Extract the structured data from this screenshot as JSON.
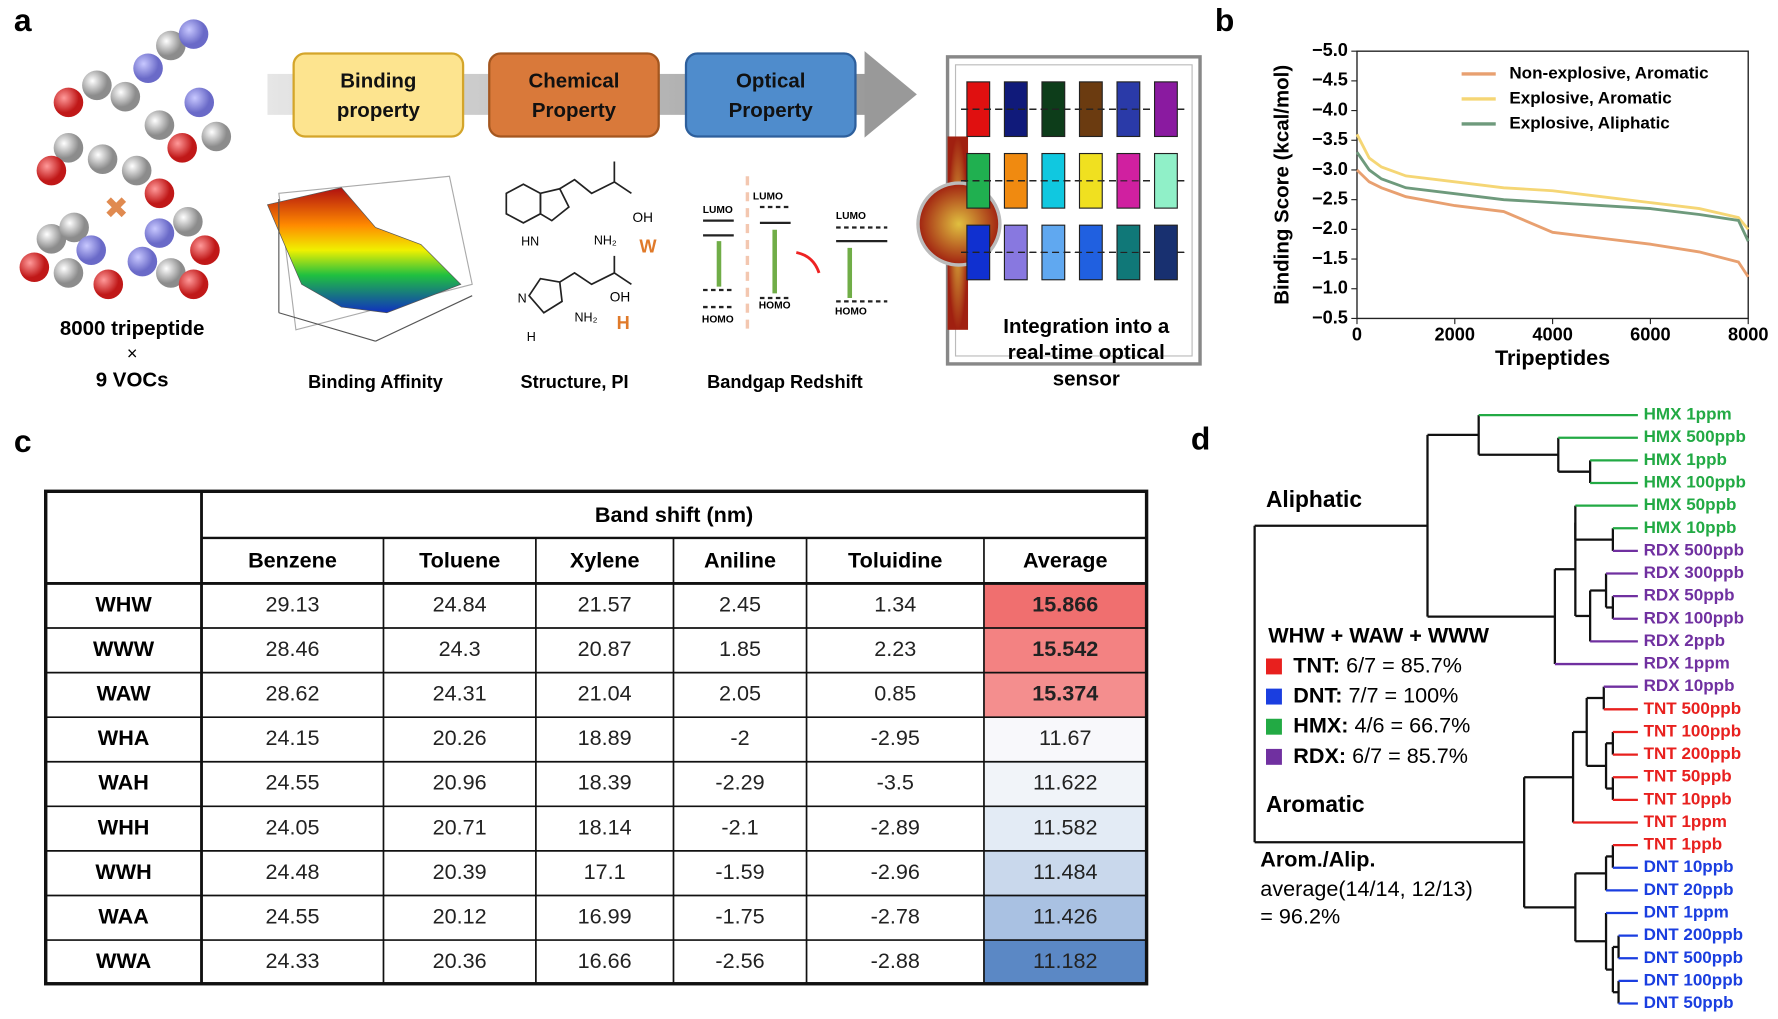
{
  "panel_labels": [
    "a",
    "b",
    "c",
    "d"
  ],
  "panel_a": {
    "input_caption": [
      "8000 tripeptide",
      "×",
      "9 VOCs"
    ],
    "steps": [
      {
        "lines": [
          "Binding",
          "property"
        ],
        "color": "#fde48f",
        "border": "#d4a52a"
      },
      {
        "lines": [
          "Chemical",
          "Property"
        ],
        "color": "#d9793a",
        "border": "#a4561f"
      },
      {
        "lines": [
          "Optical",
          "Property"
        ],
        "color": "#4f8ccc",
        "border": "#2d5f9c"
      }
    ],
    "step_captions": [
      "Binding Affinity",
      "Structure, PI",
      "Bandgap Redshift"
    ],
    "tryptophan": {
      "oh": "OH",
      "nh2": "NH₂",
      "nh": "HN",
      "code": "W"
    },
    "histidine": {
      "oh": "OH",
      "nh2": "NH₂",
      "n": "N",
      "nh": "H",
      "code": "H"
    },
    "band_labels": {
      "lumo": "LUMO",
      "homo": "HOMO"
    },
    "sensor_caption": [
      "Integration into a",
      "real-time optical",
      "sensor"
    ]
  },
  "chart_data": {
    "type": "line",
    "xlabel": "Tripeptides",
    "ylabel": "Binding Score (kcal/mol)",
    "x": [
      0,
      250,
      500,
      1000,
      2000,
      3000,
      4000,
      5000,
      6000,
      7000,
      7800,
      8000
    ],
    "series": [
      {
        "name": "Non-explosive, Aromatic",
        "color": "#e8a070",
        "values": [
          -3.0,
          -2.8,
          -2.7,
          -2.55,
          -2.4,
          -2.3,
          -1.95,
          -1.85,
          -1.75,
          -1.62,
          -1.45,
          -1.2
        ]
      },
      {
        "name": "Explosive, Aromatic",
        "color": "#f5d675",
        "values": [
          -3.6,
          -3.2,
          -3.05,
          -2.9,
          -2.8,
          -2.7,
          -2.65,
          -2.55,
          -2.45,
          -2.35,
          -2.2,
          -2.0
        ]
      },
      {
        "name": "Explosive, Aliphatic",
        "color": "#6e9a7c",
        "values": [
          -3.3,
          -3.0,
          -2.85,
          -2.7,
          -2.6,
          -2.5,
          -2.45,
          -2.4,
          -2.35,
          -2.25,
          -2.15,
          -1.8
        ]
      }
    ],
    "xlim": [
      0,
      8000
    ],
    "xticks": [
      0,
      2000,
      4000,
      6000,
      8000
    ],
    "ylim": [
      -0.5,
      -5.0
    ],
    "yticks": [
      {
        "value": -5.0,
        "label": "−5.0"
      },
      {
        "value": -4.5,
        "label": "−4.5"
      },
      {
        "value": -4.0,
        "label": "−4.0"
      },
      {
        "value": -3.5,
        "label": "−3.5"
      },
      {
        "value": -3.0,
        "label": "−3.0"
      },
      {
        "value": -2.5,
        "label": "−2.5"
      },
      {
        "value": -2.0,
        "label": "−2.0"
      },
      {
        "value": -1.5,
        "label": "−1.5"
      },
      {
        "value": -1.0,
        "label": "−1.0"
      },
      {
        "value": -0.5,
        "label": "−0.5"
      }
    ],
    "legend": "upper right"
  },
  "table": {
    "group_header": "Band shift (nm)",
    "columns": [
      "Benzene",
      "Toluene",
      "Xylene",
      "Aniline",
      "Toluidine",
      "Average"
    ],
    "rows": [
      {
        "label": "WHW",
        "values": [
          29.13,
          24.84,
          21.57,
          2.45,
          1.34,
          15.866
        ]
      },
      {
        "label": "WWW",
        "values": [
          28.46,
          24.3,
          20.87,
          1.85,
          2.23,
          15.542
        ]
      },
      {
        "label": "WAW",
        "values": [
          28.62,
          24.31,
          21.04,
          2.05,
          0.85,
          15.374
        ]
      },
      {
        "label": "WHA",
        "values": [
          24.15,
          20.26,
          18.89,
          -2,
          -2.95,
          11.67
        ]
      },
      {
        "label": "WAH",
        "values": [
          24.55,
          20.96,
          18.39,
          -2.29,
          -3.5,
          11.622
        ]
      },
      {
        "label": "WHH",
        "values": [
          24.05,
          20.71,
          18.14,
          -2.1,
          -2.89,
          11.582
        ]
      },
      {
        "label": "WWH",
        "values": [
          24.48,
          20.39,
          17.1,
          -1.59,
          -2.96,
          11.484
        ]
      },
      {
        "label": "WAA",
        "values": [
          24.55,
          20.12,
          16.99,
          -1.75,
          -2.78,
          11.426
        ]
      },
      {
        "label": "WWA",
        "values": [
          24.33,
          20.36,
          16.66,
          -2.56,
          -2.88,
          11.182
        ]
      }
    ],
    "average_fills": [
      "#f06f6f",
      "#f38282",
      "#f48e8e",
      "#f8f8fb",
      "#f1f4f9",
      "#e3ebf5",
      "#c9d8ec",
      "#a9c1e2",
      "#5b88c5"
    ]
  },
  "dendrogram": {
    "clusters": [
      "Aliphatic",
      "Aromatic"
    ],
    "leaves": [
      {
        "label": "HMX 1ppm",
        "color": "#22aa44"
      },
      {
        "label": "HMX 500ppb",
        "color": "#22aa44"
      },
      {
        "label": "HMX 1ppb",
        "color": "#22aa44"
      },
      {
        "label": "HMX 100ppb",
        "color": "#22aa44"
      },
      {
        "label": "HMX 50ppb",
        "color": "#22aa44"
      },
      {
        "label": "HMX 10ppb",
        "color": "#22aa44"
      },
      {
        "label": "RDX 500ppb",
        "color": "#7030a0"
      },
      {
        "label": "RDX 300ppb",
        "color": "#7030a0"
      },
      {
        "label": "RDX 50ppb",
        "color": "#7030a0"
      },
      {
        "label": "RDX 100ppb",
        "color": "#7030a0"
      },
      {
        "label": "RDX 2ppb",
        "color": "#7030a0"
      },
      {
        "label": "RDX 1ppm",
        "color": "#7030a0"
      },
      {
        "label": "RDX 10ppb",
        "color": "#7030a0"
      },
      {
        "label": "TNT 500ppb",
        "color": "#e8201e"
      },
      {
        "label": "TNT 100ppb",
        "color": "#e8201e"
      },
      {
        "label": "TNT 200ppb",
        "color": "#e8201e"
      },
      {
        "label": "TNT 50ppb",
        "color": "#e8201e"
      },
      {
        "label": "TNT 10ppb",
        "color": "#e8201e"
      },
      {
        "label": "TNT 1ppm",
        "color": "#e8201e"
      },
      {
        "label": "TNT 1ppb",
        "color": "#e8201e"
      },
      {
        "label": "DNT 10ppb",
        "color": "#1a3ee0"
      },
      {
        "label": "DNT 20ppb",
        "color": "#1a3ee0"
      },
      {
        "label": "DNT 1ppm",
        "color": "#1a3ee0"
      },
      {
        "label": "DNT 200ppb",
        "color": "#1a3ee0"
      },
      {
        "label": "DNT 500ppb",
        "color": "#1a3ee0"
      },
      {
        "label": "DNT 100ppb",
        "color": "#1a3ee0"
      },
      {
        "label": "DNT 50ppb",
        "color": "#1a3ee0"
      }
    ],
    "legend": {
      "title": "WHW + WAW + WWW",
      "entries": [
        {
          "name": "TNT:",
          "text": "6/7 = 85.7%",
          "color": "#e8201e"
        },
        {
          "name": "DNT:",
          "text": "7/7 = 100%",
          "color": "#1a3ee0"
        },
        {
          "name": "HMX:",
          "text": "4/6 = 66.7%",
          "color": "#22aa44"
        },
        {
          "name": "RDX:",
          "text": "6/7 = 85.7%",
          "color": "#7030a0"
        }
      ]
    },
    "summary": [
      "Arom./Alip.",
      "average(14/14,  12/13)",
      "= 96.2%"
    ]
  }
}
